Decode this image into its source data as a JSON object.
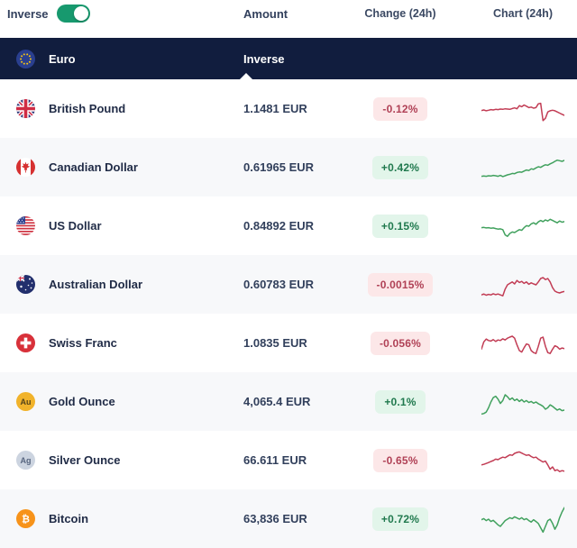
{
  "toolbar": {
    "inverse_label": "Inverse",
    "toggle_state": "on"
  },
  "columns": {
    "amount": "Amount",
    "change": "Change (24h)",
    "chart": "Chart (24h)"
  },
  "base_currency": {
    "name": "Euro",
    "icon": "flag-eu",
    "amount_cell": "Inverse"
  },
  "colors": {
    "navy_bar": "#111d3e",
    "toggle_on": "#17996e",
    "badge_up_bg": "#e2f5ea",
    "badge_up_text": "#20794e",
    "badge_down_bg": "#fce7e8",
    "badge_down_text": "#b04156",
    "spark_up": "#41a15e",
    "spark_down": "#c23d55",
    "alt_row_bg": "#f7f8fa"
  },
  "rows": [
    {
      "name": "British Pound",
      "icon": "flag-uk",
      "amount": "1.1481 EUR",
      "change": "-0.12%",
      "direction": "down"
    },
    {
      "name": "Canadian Dollar",
      "icon": "flag-ca",
      "amount": "0.61965 EUR",
      "change": "+0.42%",
      "direction": "up"
    },
    {
      "name": "US Dollar",
      "icon": "flag-us",
      "amount": "0.84892 EUR",
      "change": "+0.15%",
      "direction": "up"
    },
    {
      "name": "Australian Dollar",
      "icon": "flag-au",
      "amount": "0.60783 EUR",
      "change": "-0.0015%",
      "direction": "down"
    },
    {
      "name": "Swiss Franc",
      "icon": "flag-ch",
      "amount": "1.0835 EUR",
      "change": "-0.056%",
      "direction": "down"
    },
    {
      "name": "Gold Ounce",
      "icon": "metal-gold",
      "amount": "4,065.4 EUR",
      "change": "+0.1%",
      "direction": "up"
    },
    {
      "name": "Silver Ounce",
      "icon": "metal-silver",
      "amount": "66.611 EUR",
      "change": "-0.65%",
      "direction": "down"
    },
    {
      "name": "Bitcoin",
      "icon": "crypto-btc",
      "amount": "63,836 EUR",
      "change": "+0.72%",
      "direction": "up"
    }
  ],
  "chart_data": {
    "type": "line",
    "note": "24h sparklines, relative scale 0-100",
    "series": [
      {
        "name": "British Pound",
        "trend": "down",
        "values": [
          45,
          47,
          44,
          46,
          48,
          47,
          49,
          48,
          50,
          49,
          51,
          50,
          49,
          52,
          54,
          51,
          62,
          58,
          64,
          60,
          55,
          57,
          53,
          55,
          68,
          70,
          10,
          18,
          40,
          44,
          46,
          44,
          40,
          36,
          32,
          28
        ]
      },
      {
        "name": "Canadian Dollar",
        "trend": "up",
        "values": [
          20,
          21,
          20,
          22,
          21,
          23,
          22,
          20,
          23,
          19,
          22,
          25,
          27,
          30,
          29,
          33,
          35,
          34,
          38,
          42,
          40,
          46,
          44,
          49,
          53,
          51,
          56,
          60,
          58,
          63,
          67,
          72,
          76,
          74,
          72,
          75
        ]
      },
      {
        "name": "US Dollar",
        "trend": "up",
        "values": [
          45,
          46,
          44,
          45,
          43,
          44,
          42,
          40,
          41,
          38,
          20,
          15,
          25,
          30,
          28,
          33,
          38,
          36,
          45,
          52,
          50,
          58,
          62,
          57,
          65,
          70,
          66,
          72,
          68,
          74,
          70,
          66,
          62,
          68,
          64,
          66
        ]
      },
      {
        "name": "Australian Dollar",
        "trend": "down",
        "values": [
          15,
          18,
          14,
          17,
          15,
          19,
          16,
          18,
          15,
          12,
          35,
          50,
          55,
          60,
          53,
          65,
          58,
          62,
          55,
          60,
          52,
          57,
          53,
          50,
          60,
          72,
          75,
          68,
          72,
          60,
          40,
          28,
          24,
          22,
          25,
          27
        ]
      },
      {
        "name": "Swiss Franc",
        "trend": "down",
        "values": [
          30,
          55,
          65,
          60,
          58,
          63,
          57,
          62,
          60,
          66,
          62,
          68,
          72,
          75,
          68,
          45,
          25,
          20,
          35,
          48,
          45,
          25,
          18,
          15,
          40,
          68,
          72,
          40,
          18,
          15,
          30,
          42,
          38,
          30,
          34,
          32
        ]
      },
      {
        "name": "Gold Ounce",
        "trend": "up",
        "values": [
          8,
          10,
          15,
          30,
          50,
          65,
          70,
          60,
          45,
          55,
          75,
          68,
          58,
          64,
          55,
          60,
          52,
          58,
          50,
          55,
          48,
          52,
          46,
          50,
          44,
          40,
          35,
          25,
          30,
          40,
          35,
          28,
          22,
          26,
          20,
          22
        ]
      },
      {
        "name": "Silver Ounce",
        "trend": "down",
        "values": [
          35,
          37,
          40,
          43,
          47,
          50,
          55,
          53,
          58,
          62,
          60,
          65,
          70,
          68,
          75,
          78,
          80,
          76,
          72,
          68,
          70,
          64,
          60,
          62,
          55,
          50,
          45,
          48,
          35,
          20,
          28,
          15,
          18,
          12,
          15,
          13
        ]
      },
      {
        "name": "Bitcoin",
        "trend": "up",
        "values": [
          48,
          52,
          45,
          50,
          42,
          46,
          38,
          30,
          25,
          35,
          45,
          50,
          55,
          52,
          58,
          54,
          50,
          55,
          48,
          52,
          45,
          40,
          48,
          42,
          35,
          20,
          5,
          25,
          45,
          50,
          35,
          15,
          30,
          55,
          75,
          90
        ]
      }
    ]
  }
}
